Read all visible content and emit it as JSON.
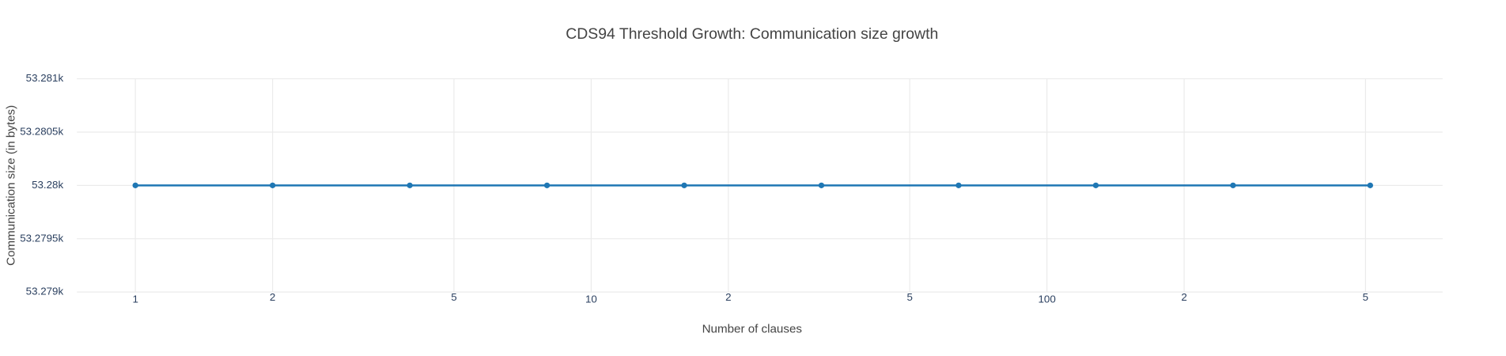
{
  "chart_data": {
    "type": "line",
    "title": "CDS94 Threshold Growth: Communication size growth",
    "x_label": "Number of clauses",
    "y_label": "Communication size (in bytes)",
    "x": [
      1,
      2,
      4,
      8,
      16,
      32,
      64,
      128,
      256,
      512
    ],
    "values": [
      53280,
      53280,
      53280,
      53280,
      53280,
      53280,
      53280,
      53280,
      53280,
      53280
    ],
    "color": "#1f77b4",
    "x_log": true,
    "xlim": [
      0.744,
      738
    ],
    "xticks": [
      1,
      2,
      5,
      10,
      {
        "value": 20,
        "label": "2"
      },
      {
        "value": 50,
        "label": "5"
      },
      100,
      {
        "value": 200,
        "label": "2"
      },
      {
        "value": 500,
        "label": "5"
      }
    ],
    "ylim": [
      53279,
      53281
    ],
    "yticks": [
      {
        "value": 53279,
        "label": "53.279k"
      },
      {
        "value": 53279.5,
        "label": "53.2795k"
      },
      {
        "value": 53280,
        "label": "53.28k"
      },
      {
        "value": 53280.5,
        "label": "53.2805k"
      },
      {
        "value": 53281,
        "label": "53.281k"
      }
    ],
    "grid": true
  }
}
